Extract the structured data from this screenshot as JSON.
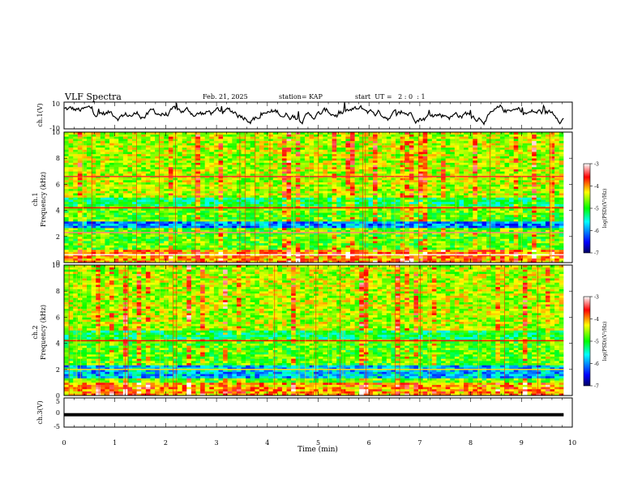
{
  "header": {
    "title": "VLF Spectra",
    "date": "Feb. 21, 2025",
    "station": "station= KAP",
    "start_ut": "start  UT =   2 : 0  : 1"
  },
  "chart_data": [
    {
      "id": "ch1-waveform",
      "type": "line",
      "ylabel": "ch.1(V)",
      "ylim": [
        -10,
        10
      ],
      "yticks": [
        10,
        -10
      ],
      "xlim": [
        0,
        10
      ],
      "trace_xmax": 9.83,
      "amplitude_note": "noisy waveform mostly between -5 and 10 V"
    },
    {
      "id": "ch1-spectrogram",
      "type": "heatmap",
      "ylabel": "ch.1\nFrequency (kHz)",
      "ylim": [
        0,
        10
      ],
      "yticks": [
        0,
        2,
        4,
        6,
        8,
        10
      ],
      "xlim": [
        0,
        10
      ],
      "trace_xmax": 9.83,
      "colorbar": {
        "label": "log(PSD)(V²/Hz)",
        "range": [
          -7,
          -3
        ],
        "ticks": [
          -3,
          -4,
          -5,
          -6,
          -7
        ]
      },
      "features": [
        {
          "kind": "hband",
          "f": 6.6,
          "level": -3.5
        },
        {
          "kind": "hband",
          "f": 4.2,
          "level": -3.6
        },
        {
          "kind": "hband",
          "f": 2.3,
          "level": -3.3
        },
        {
          "kind": "hband",
          "f": 0.6,
          "level": -3.0
        },
        {
          "kind": "low-band",
          "f_range": [
            2.6,
            3.2
          ],
          "level": -6.0
        }
      ]
    },
    {
      "id": "ch2-spectrogram",
      "type": "heatmap",
      "ylabel": "ch.2\nFrequency (kHz)",
      "ylim": [
        0,
        10
      ],
      "yticks": [
        0,
        2,
        4,
        6,
        8,
        10
      ],
      "xlim": [
        0,
        10
      ],
      "trace_xmax": 9.83,
      "colorbar": {
        "label": "log(PSD)(V²/Hz)",
        "range": [
          -7,
          -3
        ],
        "ticks": [
          -3,
          -4,
          -5,
          -6,
          -7
        ]
      },
      "features": [
        {
          "kind": "hband",
          "f": 4.2,
          "level": -3.6
        },
        {
          "kind": "hband",
          "f": 2.0,
          "level": -4.2
        },
        {
          "kind": "low-band",
          "f_range": [
            1.4,
            2.4
          ],
          "level": -5.8
        }
      ]
    },
    {
      "id": "ch3-waveform",
      "type": "line",
      "ylabel": "ch.3(V)",
      "ylim": [
        -5,
        5
      ],
      "yticks": [
        5,
        0,
        -5
      ],
      "xlim": [
        0,
        10
      ],
      "trace_xmax": 9.83,
      "value_range": [
        -1.3,
        -0.2
      ]
    }
  ],
  "xaxis": {
    "label": "Time (min)",
    "ticks": [
      0,
      1,
      2,
      3,
      4,
      5,
      6,
      7,
      8,
      9,
      10
    ]
  },
  "colors": {
    "colormap": [
      "#000066",
      "#0000ff",
      "#00ffff",
      "#00ff00",
      "#ffff00",
      "#ff0000",
      "#ffffff"
    ]
  }
}
